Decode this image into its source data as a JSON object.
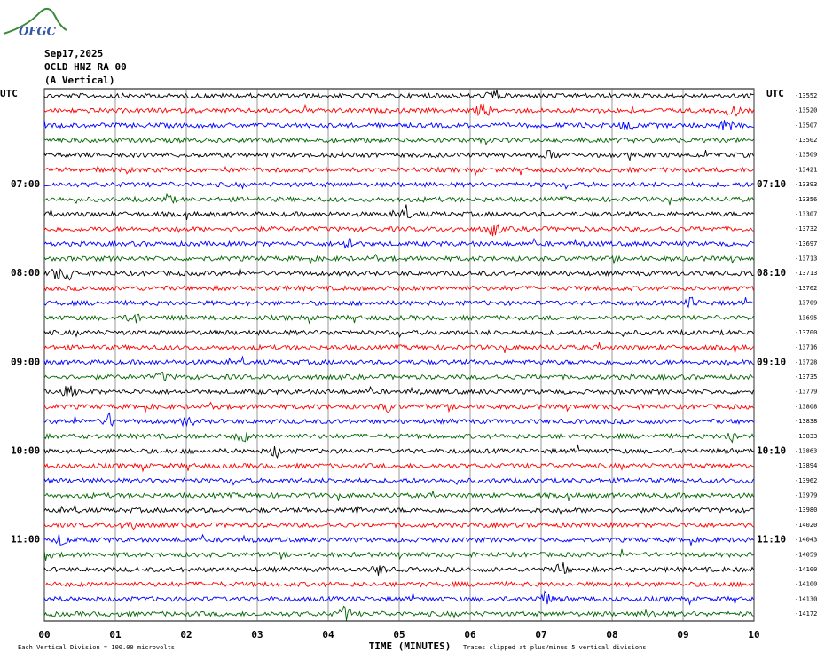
{
  "logo": "OFGC",
  "header": {
    "date": "Sep17,2025",
    "station": "OCLD HNZ RA 00",
    "component": "(A Vertical)"
  },
  "left_axis": {
    "title": "UTC",
    "labels": [
      "07:00",
      "08:00",
      "09:00",
      "10:00",
      "11:00"
    ]
  },
  "right_axis": {
    "title": "UTC",
    "labels": [
      "07:10",
      "08:10",
      "09:10",
      "10:10",
      "11:10"
    ]
  },
  "trace_colors": [
    "#000000",
    "#ff0000",
    "#0000ff",
    "#006400"
  ],
  "trace_offsets": [
    -13552,
    -13520,
    -13507,
    -13502,
    -13509,
    -13421,
    -13393,
    -13356,
    -13307,
    -13732,
    -13697,
    -13713,
    -13713,
    -13702,
    -13709,
    -13695,
    -13700,
    -13716,
    -13728,
    -13735,
    -13779,
    -13808,
    -13838,
    -13833,
    -13863,
    -13894,
    -13962,
    -13979,
    -13980,
    -14020,
    -14043,
    -14059,
    -14100,
    -14100,
    -14130,
    -14172
  ],
  "x_axis": {
    "ticks": [
      "00",
      "01",
      "02",
      "03",
      "04",
      "05",
      "06",
      "07",
      "08",
      "09",
      "10"
    ],
    "title": "TIME (MINUTES)"
  },
  "footer": {
    "scale": "Each Vertical Division =  100.00 microvolts",
    "clip": "Traces clipped at plus/minus 5 vertical divisions"
  }
}
